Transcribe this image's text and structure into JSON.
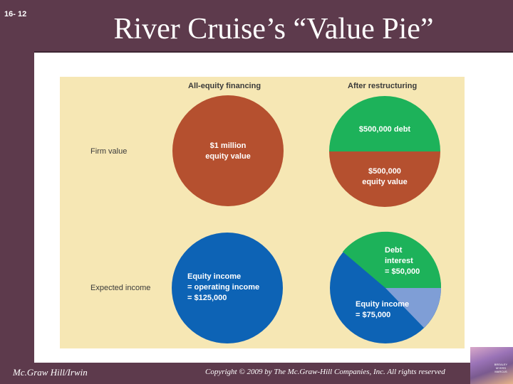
{
  "slide_number": "16- 12",
  "title": "River Cruise’s “Value Pie”",
  "footer": {
    "publisher": "Mc.Graw Hill/Irwin",
    "copyright": "Copyright © 2009 by The Mc.Graw-Hill Companies, Inc. All rights reserved"
  },
  "book_cover_text": "BREALEY MYERS MARCUS",
  "figure": {
    "column_headers": [
      "All-equity financing",
      "After restructuring"
    ],
    "row_labels": [
      "Firm value",
      "Expected income"
    ],
    "pie_firm_all_equity": {
      "label_line1": "$1 million",
      "label_line2": "equity value",
      "color": "#b5502f"
    },
    "pie_firm_restructured": {
      "debt_label": "$500,000 debt",
      "equity_label_line1": "$500,000",
      "equity_label_line2": "equity value",
      "debt_color": "#1db25a",
      "equity_color": "#b5502f"
    },
    "pie_income_all_equity": {
      "label_line1": "Equity income",
      "label_line2": "= operating income",
      "label_line3": "= $125,000",
      "color": "#0d63b5"
    },
    "pie_income_restructured": {
      "debt_label_line1": "Debt",
      "debt_label_line2": "interest",
      "debt_label_line3": "= $50,000",
      "equity_label_line1": "Equity income",
      "equity_label_line2": "= $75,000",
      "debt_color": "#1db25a",
      "equity_color": "#0d63b5",
      "tax_wedge_color": "#7f9ed6"
    }
  }
}
